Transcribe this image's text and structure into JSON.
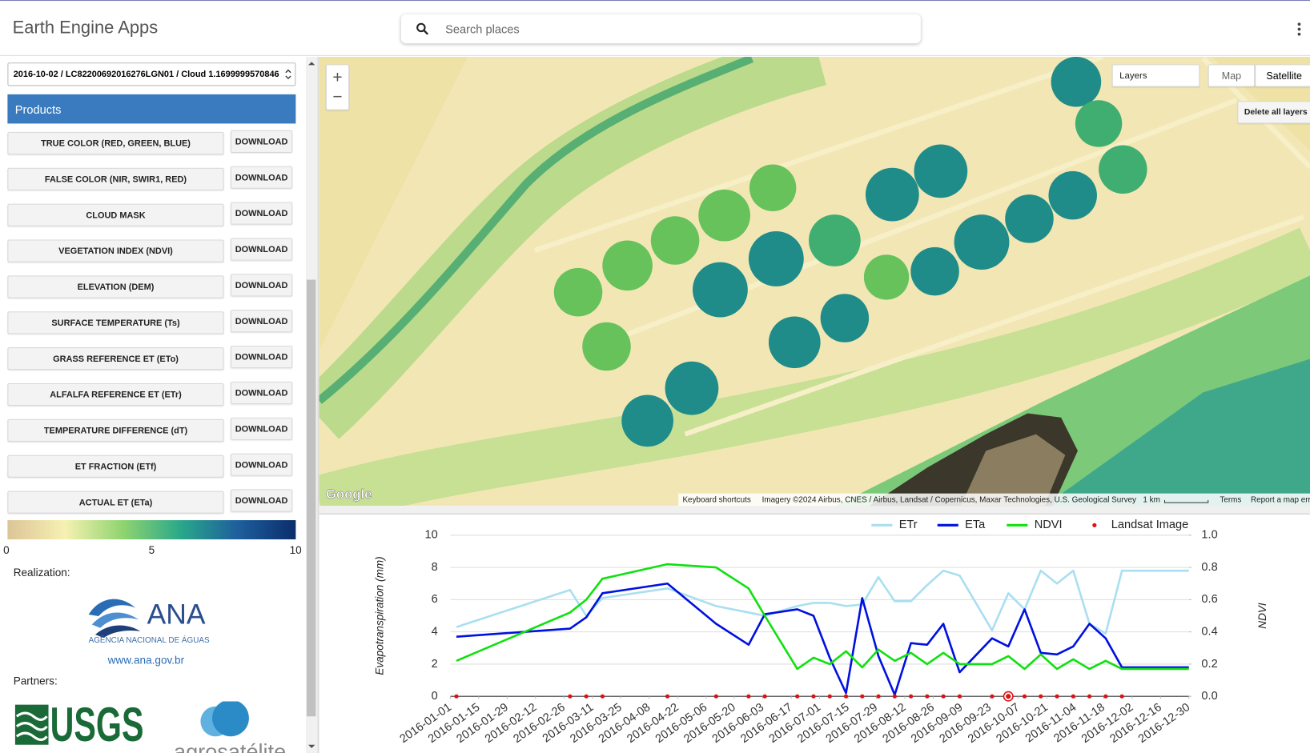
{
  "header": {
    "title": "Earth Engine Apps",
    "search_placeholder": "Search places"
  },
  "panel": {
    "image_select": "2016-10-02 / LC82200692016276LGN01 / Cloud 1.1699999570846",
    "products_title": "Products",
    "products": [
      {
        "label": "TRUE COLOR (RED, GREEN, BLUE)",
        "button": "DOWNLOAD"
      },
      {
        "label": "FALSE COLOR (NIR, SWIR1, RED)",
        "button": "DOWNLOAD"
      },
      {
        "label": "CLOUD MASK",
        "button": "DOWNLOAD"
      },
      {
        "label": "VEGETATION INDEX (NDVI)",
        "button": "DOWNLOAD"
      },
      {
        "label": "ELEVATION (DEM)",
        "button": "DOWNLOAD"
      },
      {
        "label": "SURFACE TEMPERATURE (Ts)",
        "button": "DOWNLOAD"
      },
      {
        "label": "GRASS REFERENCE ET (ETo)",
        "button": "DOWNLOAD"
      },
      {
        "label": "ALFALFA REFERENCE ET (ETr)",
        "button": "DOWNLOAD"
      },
      {
        "label": "TEMPERATURE DIFFERENCE (dT)",
        "button": "DOWNLOAD"
      },
      {
        "label": "ET FRACTION (ETf)",
        "button": "DOWNLOAD"
      },
      {
        "label": "ACTUAL ET (ETa)",
        "button": "DOWNLOAD"
      }
    ],
    "colorbar": {
      "lim": [
        0,
        10
      ],
      "ticks": [
        0,
        5,
        10
      ],
      "colors": [
        "#dcc497",
        "#f6f1b2",
        "#8fd46f",
        "#2aa88a",
        "#1d5f9c",
        "#0b2d6b"
      ]
    },
    "realization_label": "Realization:",
    "ana_name": "ANA",
    "ana_subtitle": "AGÊNCIA NACIONAL DE ÁGUAS",
    "ana_url": "www.ana.gov.br",
    "partners_label": "Partners:",
    "usgs": "USGS",
    "agro": "agrosatélite"
  },
  "map": {
    "zoom_in": "+",
    "zoom_out": "−",
    "layers": "Layers",
    "map": "Map",
    "satellite": "Satellite",
    "delete_layers": "Delete all layers",
    "google": "Google",
    "keyboard": "Keyboard shortcuts",
    "imagery": "Imagery ©2024 Airbus, CNES / Airbus, Landsat / Copernicus, Maxar Technologies, U.S. Geological Survey",
    "scale": "1 km",
    "terms": "Terms",
    "report": "Report a map error"
  },
  "chart_data": {
    "type": "line",
    "y_label": "Evapotranspiration (mm)",
    "y2_label": "NDVI",
    "x": [
      "2016-01-04",
      "2016-02-29",
      "2016-03-08",
      "2016-03-16",
      "2016-04-17",
      "2016-05-11",
      "2016-05-27",
      "2016-06-04",
      "2016-06-20",
      "2016-06-28",
      "2016-07-06",
      "2016-07-14",
      "2016-07-22",
      "2016-07-30",
      "2016-08-07",
      "2016-08-15",
      "2016-08-23",
      "2016-08-31",
      "2016-09-08",
      "2016-09-24",
      "2016-10-02",
      "2016-10-10",
      "2016-10-18",
      "2016-10-26",
      "2016-11-03",
      "2016-11-11",
      "2016-11-19",
      "2016-11-27",
      "2016-12-30"
    ],
    "xlim": [
      "2016-01-01",
      "2016-12-30"
    ],
    "xticks": [
      "2016-01-01",
      "2016-01-15",
      "2016-01-29",
      "2016-02-12",
      "2016-02-26",
      "2016-03-11",
      "2016-03-25",
      "2016-04-08",
      "2016-04-22",
      "2016-05-06",
      "2016-05-20",
      "2016-06-03",
      "2016-06-17",
      "2016-07-01",
      "2016-07-15",
      "2016-07-29",
      "2016-08-12",
      "2016-08-26",
      "2016-09-09",
      "2016-09-23",
      "2016-10-07",
      "2016-10-21",
      "2016-11-04",
      "2016-11-18",
      "2016-12-02",
      "2016-12-16",
      "2016-12-30"
    ],
    "ylim": [
      0,
      10
    ],
    "yticks": [
      0,
      2,
      4,
      6,
      8,
      10
    ],
    "y2lim": [
      0,
      1
    ],
    "y2ticks": [
      {
        "value": 0,
        "label": "0.0"
      },
      {
        "value": 0.2,
        "label": "0.2"
      },
      {
        "value": 0.4,
        "label": "0.4"
      },
      {
        "value": 0.6,
        "label": "0.6"
      },
      {
        "value": 0.8,
        "label": "0.8"
      },
      {
        "value": 1,
        "label": "1.0"
      }
    ],
    "grid": true,
    "legend": "top-right",
    "selected_x": "2016-10-02",
    "series": [
      {
        "name": "ETr",
        "color": "#a9dff0",
        "mode": "lines",
        "values": [
          4.3,
          6.6,
          5.0,
          6.1,
          6.7,
          5.6,
          5.2,
          5.0,
          5.6,
          5.8,
          5.8,
          5.6,
          5.7,
          7.4,
          5.9,
          5.9,
          6.9,
          7.8,
          7.5,
          4.1,
          6.4,
          5.4,
          7.8,
          7.0,
          7.8,
          4.5,
          3.9,
          7.8,
          7.8
        ]
      },
      {
        "name": "ETa",
        "color": "#0010e0",
        "mode": "lines",
        "values": [
          3.7,
          4.2,
          4.9,
          6.4,
          7.0,
          4.5,
          3.2,
          5.1,
          5.4,
          5.0,
          2.4,
          0.2,
          6.1,
          2.5,
          0.1,
          3.3,
          3.2,
          4.5,
          1.5,
          3.6,
          3.1,
          5.4,
          2.7,
          2.6,
          3.1,
          4.5,
          3.6,
          1.8,
          1.8
        ]
      },
      {
        "name": "NDVI",
        "color": "#10e010",
        "mode": "lines",
        "axis": "y2",
        "values": [
          0.22,
          0.52,
          0.6,
          0.73,
          0.82,
          0.8,
          0.67,
          0.5,
          0.17,
          0.24,
          0.2,
          0.28,
          0.18,
          0.29,
          0.22,
          0.27,
          0.2,
          0.27,
          0.2,
          0.2,
          0.25,
          0.17,
          0.26,
          0.17,
          0.23,
          0.17,
          0.22,
          0.17,
          0.17
        ]
      },
      {
        "name": "Landsat Image",
        "color": "#e01010",
        "mode": "markers",
        "values": [
          0,
          0,
          0,
          0,
          0,
          0,
          0,
          0,
          0,
          0,
          0,
          0,
          0,
          0,
          0,
          0,
          0,
          0,
          0,
          0,
          0,
          0,
          0,
          0,
          0,
          0,
          0,
          0,
          null
        ]
      }
    ]
  }
}
